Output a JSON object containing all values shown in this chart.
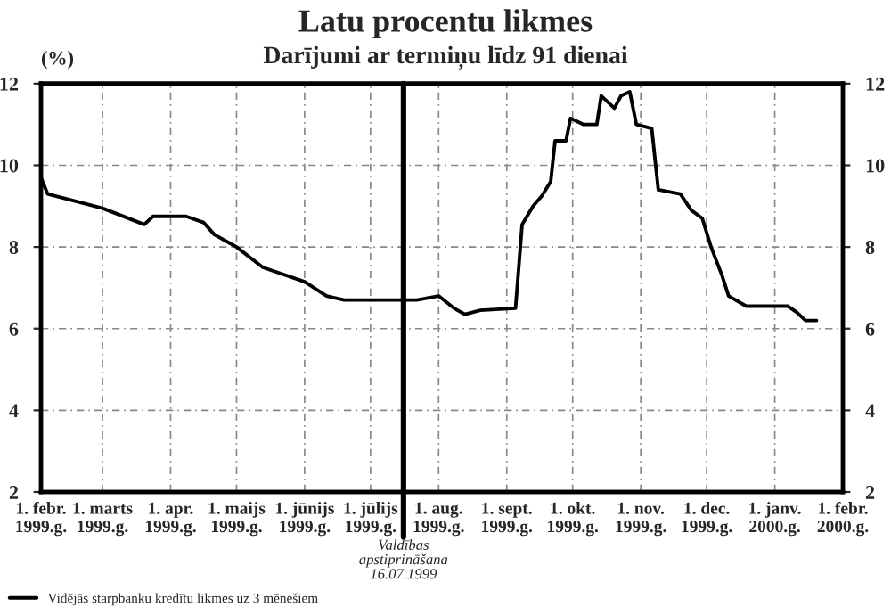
{
  "chart_data": {
    "type": "line",
    "title": "Latu procentu likmes",
    "subtitle": "Darījumi ar termiņu līdz 91 dienai",
    "ylabel": "(%)",
    "x": [
      "1999-02-01",
      "1999-02-04",
      "1999-03-01",
      "1999-03-20",
      "1999-03-24",
      "1999-04-08",
      "1999-04-16",
      "1999-04-21",
      "1999-05-01",
      "1999-05-13",
      "1999-06-01",
      "1999-06-11",
      "1999-06-19",
      "1999-07-22",
      "1999-08-01",
      "1999-08-08",
      "1999-08-13",
      "1999-08-20",
      "1999-09-05",
      "1999-09-08",
      "1999-09-13",
      "1999-09-17",
      "1999-09-21",
      "1999-09-23",
      "1999-09-28",
      "1999-09-30",
      "1999-10-06",
      "1999-10-12",
      "1999-10-14",
      "1999-10-20",
      "1999-10-23",
      "1999-10-27",
      "1999-10-30",
      "1999-11-06",
      "1999-11-09",
      "1999-11-19",
      "1999-11-24",
      "1999-11-29",
      "1999-12-03",
      "1999-12-08",
      "1999-12-11",
      "1999-12-19",
      "2000-01-07",
      "2000-01-11",
      "2000-01-15",
      "2000-01-20"
    ],
    "series": [
      {
        "name": "Vidējās starpbanku kredītu likmes uz 3 mēnešiem",
        "color": "#000000",
        "values": [
          9.7,
          9.3,
          8.95,
          8.55,
          8.75,
          8.75,
          8.6,
          8.3,
          8.0,
          7.5,
          7.15,
          6.8,
          6.7,
          6.7,
          6.8,
          6.5,
          6.35,
          6.45,
          6.5,
          8.55,
          9.0,
          9.25,
          9.6,
          10.6,
          10.6,
          11.15,
          11.0,
          11.0,
          11.7,
          11.4,
          11.7,
          11.8,
          11.0,
          10.9,
          9.4,
          9.3,
          8.9,
          8.7,
          8.0,
          7.3,
          6.8,
          6.55,
          6.55,
          6.4,
          6.2,
          6.2
        ]
      }
    ],
    "xlim": [
      "1999-02-01",
      "2000-02-01"
    ],
    "xticks": [
      {
        "value": "1999-02-01",
        "label": "1. febr.\n1999.g."
      },
      {
        "value": "1999-03-01",
        "label": "1. marts\n1999.g."
      },
      {
        "value": "1999-04-01",
        "label": "1. apr.\n1999.g."
      },
      {
        "value": "1999-05-01",
        "label": "1. maijs\n1999.g."
      },
      {
        "value": "1999-06-01",
        "label": "1. jūnijs\n1999.g."
      },
      {
        "value": "1999-07-01",
        "label": "1. jūlijs\n1999.g."
      },
      {
        "value": "1999-08-01",
        "label": "1. aug.\n1999.g."
      },
      {
        "value": "1999-09-01",
        "label": "1. sept.\n1999.g."
      },
      {
        "value": "1999-10-01",
        "label": "1. okt.\n1999.g."
      },
      {
        "value": "1999-11-01",
        "label": "1. nov.\n1999.g."
      },
      {
        "value": "1999-12-01",
        "label": "1. dec.\n1999.g."
      },
      {
        "value": "2000-01-01",
        "label": "1. janv.\n2000.g."
      },
      {
        "value": "2000-02-01",
        "label": "1. febr.\n2000.g."
      }
    ],
    "ylim": [
      2,
      12
    ],
    "yticks": [
      2,
      4,
      6,
      8,
      10,
      12
    ],
    "y2lim": [
      2,
      12
    ],
    "y2ticks": [
      2,
      4,
      6,
      8,
      10,
      12
    ],
    "ref_lines": [
      {
        "axis": "x",
        "value": "1999-07-16",
        "label": "Valdības\napstiprināšana\n16.07.1999",
        "color": "#000000"
      }
    ],
    "grid": true,
    "legend": "bottom left",
    "line_style": "solid",
    "marker": "none"
  }
}
